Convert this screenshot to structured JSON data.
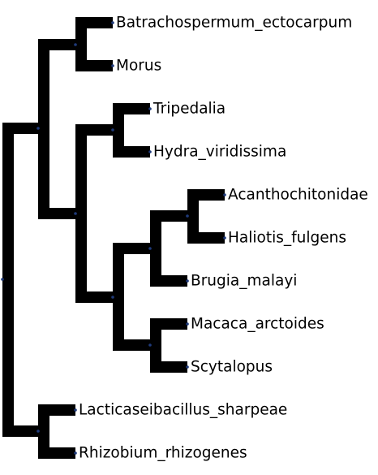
{
  "tree": {
    "branch_color": "#000000",
    "node_color": "#1f3a7a",
    "leaves": [
      "Batrachospermum_ectocarpum",
      "Morus",
      "Tripedalia",
      "Hydra_viridissima",
      "Acanthochitonidae",
      "Haliotis_fulgens",
      "Brugia_malayi",
      "Macaca_arctoides",
      "Scytalopus",
      "Lacticaseibacillus_sharpeae",
      "Rhizobium_rhizogenes"
    ]
  }
}
